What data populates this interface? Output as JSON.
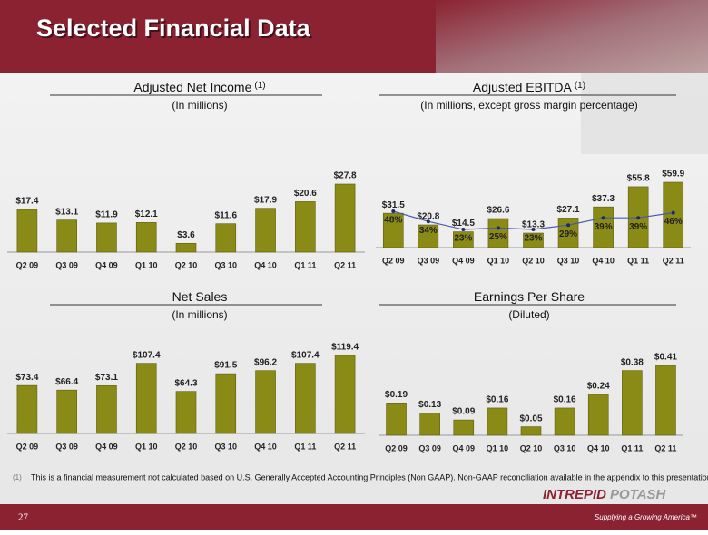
{
  "header": {
    "title": "Selected Financial Data"
  },
  "chart_data": [
    {
      "type": "bar",
      "title": "Adjusted Net Income",
      "title_note": "(1)",
      "subtitle": "(In millions)",
      "color": "#8a8a16",
      "categories": [
        "Q2 09",
        "Q3 09",
        "Q4 09",
        "Q1 10",
        "Q2 10",
        "Q3 10",
        "Q4 10",
        "Q1 11",
        "Q2 11"
      ],
      "values": [
        17.4,
        13.1,
        11.9,
        12.1,
        3.6,
        11.6,
        17.9,
        20.6,
        27.8
      ],
      "value_labels": [
        "$17.4",
        "$13.1",
        "$11.9",
        "$12.1",
        "$3.6",
        "$11.6",
        "$17.9",
        "$20.6",
        "$27.8"
      ]
    },
    {
      "type": "bar_line",
      "title": "Adjusted EBITDA",
      "title_note": "(1)",
      "subtitle": "(In millions, except gross margin percentage)",
      "categories": [
        "Q2 09",
        "Q3 09",
        "Q4 09",
        "Q1 10",
        "Q2 10",
        "Q3 10",
        "Q4 10",
        "Q1 11",
        "Q2 11"
      ],
      "series": [
        {
          "type": "bar",
          "color": "#8a8a16",
          "values": [
            31.5,
            20.8,
            14.5,
            26.6,
            13.3,
            27.1,
            37.3,
            55.8,
            59.9
          ],
          "value_labels": [
            "$31.5",
            "$20.8",
            "$14.5",
            "$26.6",
            "$13.3",
            "$27.1",
            "$37.3",
            "$55.8",
            "$59.9"
          ]
        },
        {
          "type": "line",
          "color": "#4a5aa8",
          "values": [
            48,
            34,
            23,
            25,
            23,
            29,
            39,
            39,
            46
          ],
          "value_labels": [
            "48%",
            "34%",
            "23%",
            "25%",
            "23%",
            "29%",
            "39%",
            "39%",
            "46%"
          ]
        }
      ]
    },
    {
      "type": "bar",
      "title": "Net Sales",
      "subtitle": "(In millions)",
      "color": "#8a8a16",
      "categories": [
        "Q2 09",
        "Q3 09",
        "Q4 09",
        "Q1 10",
        "Q2 10",
        "Q3 10",
        "Q4 10",
        "Q1 11",
        "Q2 11"
      ],
      "values": [
        73.4,
        66.4,
        73.1,
        107.4,
        64.3,
        91.5,
        96.2,
        107.4,
        119.4
      ],
      "value_labels": [
        "$73.4",
        "$66.4",
        "$73.1",
        "$107.4",
        "$64.3",
        "$91.5",
        "$96.2",
        "$107.4",
        "$119.4"
      ]
    },
    {
      "type": "bar",
      "title": "Earnings Per Share",
      "subtitle": "(Diluted)",
      "color": "#8a8a16",
      "categories": [
        "Q2 09",
        "Q3 09",
        "Q4 09",
        "Q1 10",
        "Q2 10",
        "Q3 10",
        "Q4 10",
        "Q1 11",
        "Q2 11"
      ],
      "values": [
        0.19,
        0.13,
        0.09,
        0.16,
        0.05,
        0.16,
        0.24,
        0.38,
        0.41
      ],
      "value_labels": [
        "$0.19",
        "$0.13",
        "$0.09",
        "$0.16",
        "$0.05",
        "$0.16",
        "$0.24",
        "$0.38",
        "$0.41"
      ]
    }
  ],
  "footnote": {
    "marker": "(1)",
    "text": "This is a financial  measurement not calculated based on U.S. Generally Accepted Accounting Principles (Non GAAP). Non-GAAP reconciliation available in the appendix to this presentation."
  },
  "page_number": "27",
  "logo": {
    "name_1": "INTREPID",
    "name_2": "POTASH",
    "tagline": "Supplying a Growing America™"
  }
}
